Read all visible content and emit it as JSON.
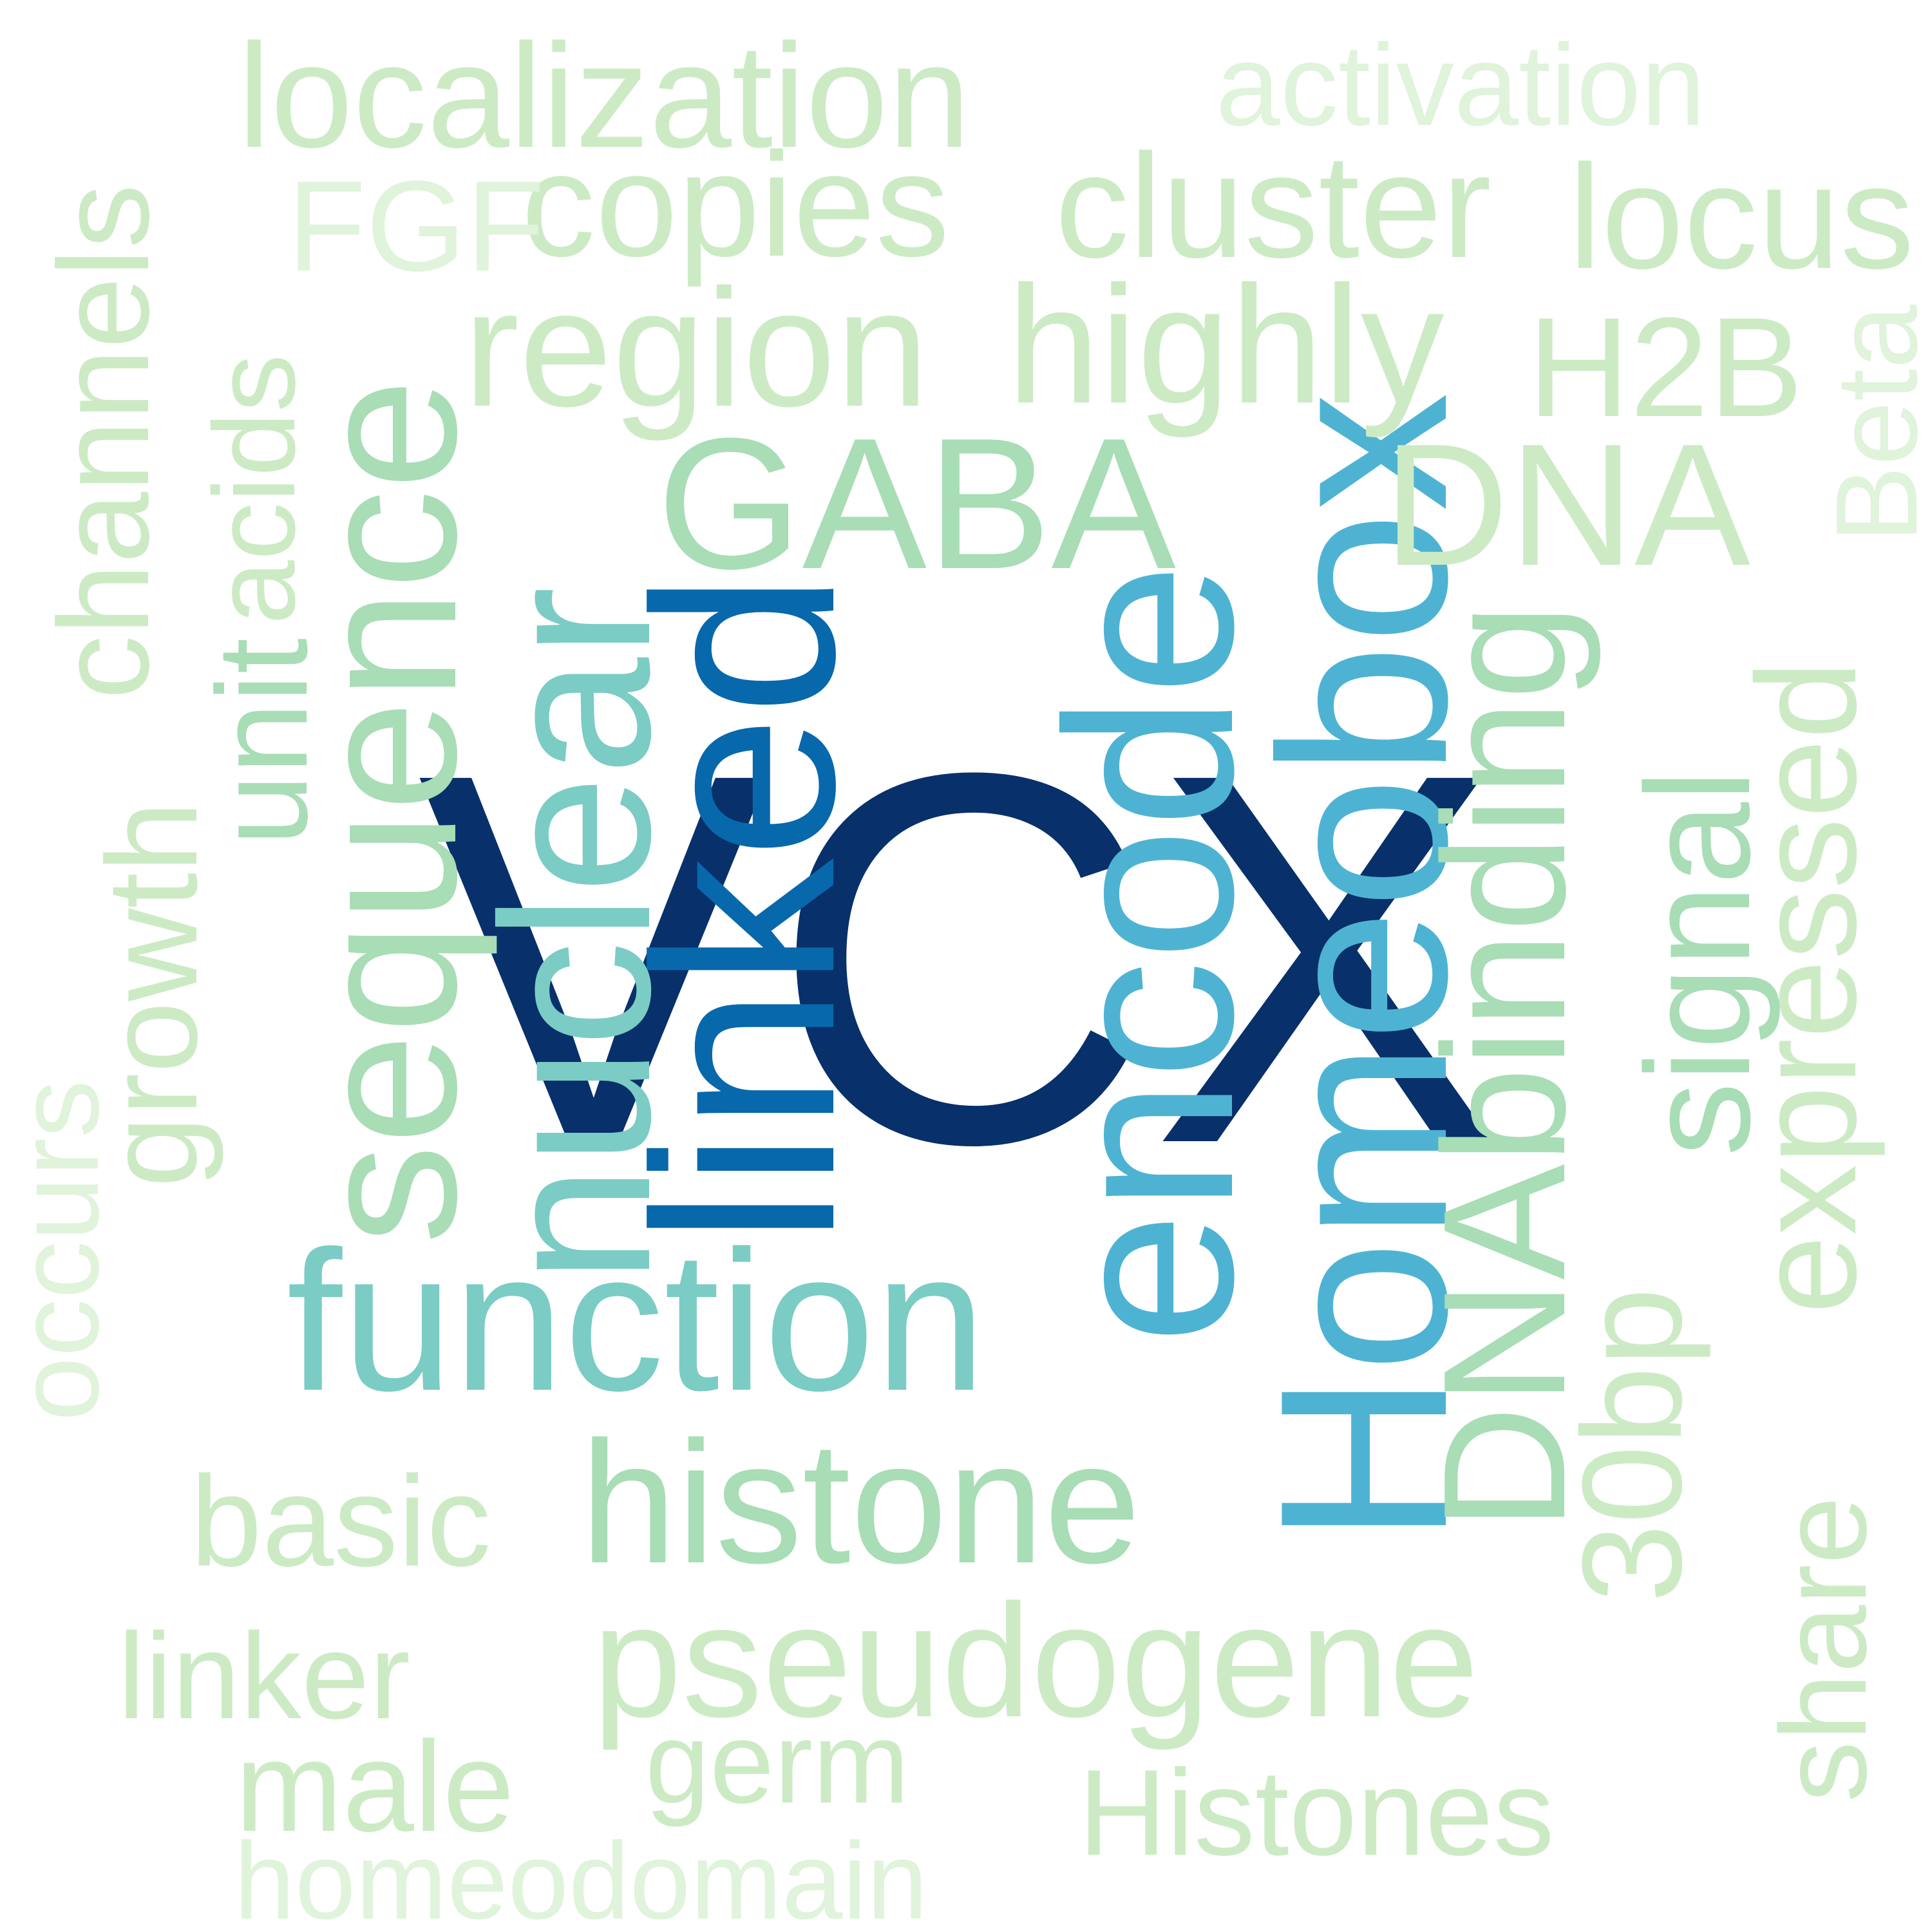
{
  "word_cloud": {
    "words": [
      {
        "id": "vcx",
        "text": "VCX",
        "color": "#08306b"
      },
      {
        "id": "linked",
        "text": "linked",
        "color": "#0868ac"
      },
      {
        "id": "encode",
        "text": "encode",
        "color": "#4eb3d3"
      },
      {
        "id": "homeobox",
        "text": "Homeobox",
        "color": "#4eb3d3"
      },
      {
        "id": "nuclear",
        "text": "nuclear",
        "color": "#7bccc4"
      },
      {
        "id": "function",
        "text": "function",
        "color": "#7bccc4"
      },
      {
        "id": "sequence",
        "text": "sequence",
        "color": "#a8ddb5"
      },
      {
        "id": "gaba",
        "text": "GABA",
        "color": "#a8ddb5"
      },
      {
        "id": "dna",
        "text": "DNA",
        "color": "#ccebc5"
      },
      {
        "id": "dnabinding",
        "text": "DNAbinding",
        "color": "#a8ddb5"
      },
      {
        "id": "histone",
        "text": "histone",
        "color": "#a8ddb5"
      },
      {
        "id": "region",
        "text": "region",
        "color": "#ccebc5"
      },
      {
        "id": "highly",
        "text": "highly",
        "color": "#ccebc5"
      },
      {
        "id": "pseudogene",
        "text": "pseudogene",
        "color": "#ccebc5"
      },
      {
        "id": "copies",
        "text": "copies",
        "color": "#ccebc5"
      },
      {
        "id": "cluster",
        "text": "cluster",
        "color": "#ccebc5"
      },
      {
        "id": "locus",
        "text": "locus",
        "color": "#ccebc5"
      },
      {
        "id": "localization",
        "text": "localization",
        "color": "#ccebc5"
      },
      {
        "id": "h2b",
        "text": "H2B",
        "color": "#ccebc5"
      },
      {
        "id": "signal",
        "text": "signal",
        "color": "#a8ddb5"
      },
      {
        "id": "expressed",
        "text": "expressed",
        "color": "#ccebc5"
      },
      {
        "id": "30bp",
        "text": "30bp",
        "color": "#ccebc5"
      },
      {
        "id": "channels",
        "text": "channels",
        "color": "#ccebc5"
      },
      {
        "id": "growth",
        "text": "growth",
        "color": "#ccebc5"
      },
      {
        "id": "unit",
        "text": "unit",
        "color": "#a8ddb5"
      },
      {
        "id": "acids",
        "text": "acids",
        "color": "#ccebc5"
      },
      {
        "id": "occurs",
        "text": "occurs",
        "color": "#e0f3db"
      },
      {
        "id": "fgf",
        "text": "FGF",
        "color": "#e0f3db"
      },
      {
        "id": "activation",
        "text": "activation",
        "color": "#e0f3db"
      },
      {
        "id": "beta",
        "text": "Beta",
        "color": "#e0f3db"
      },
      {
        "id": "share",
        "text": "share",
        "color": "#ccebc5"
      },
      {
        "id": "basic",
        "text": "basic",
        "color": "#ccebc5"
      },
      {
        "id": "linker",
        "text": "linker",
        "color": "#ccebc5"
      },
      {
        "id": "male",
        "text": "male",
        "color": "#ccebc5"
      },
      {
        "id": "germ",
        "text": "germ",
        "color": "#ccebc5"
      },
      {
        "id": "histones",
        "text": "Histones",
        "color": "#ccebc5"
      },
      {
        "id": "homeodomain",
        "text": "homeodomain",
        "color": "#e0f3db"
      }
    ]
  }
}
